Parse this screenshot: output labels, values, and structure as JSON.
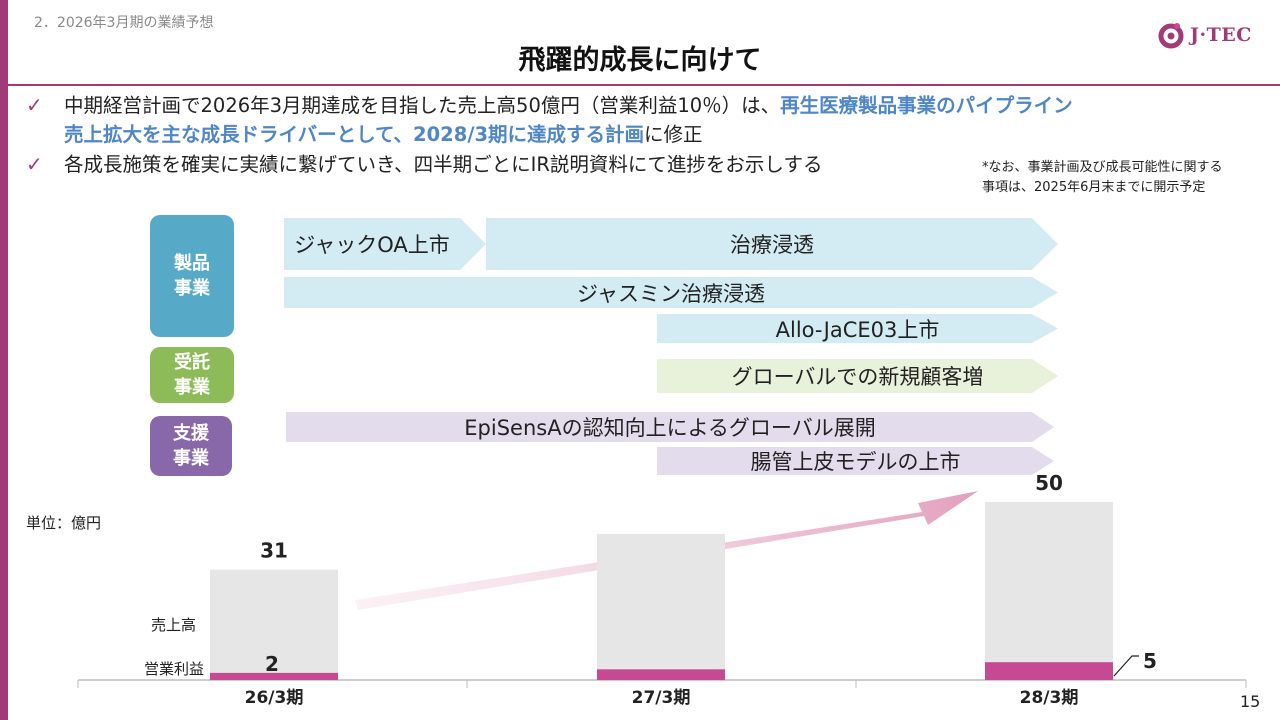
{
  "header": {
    "section": "2．2026年3月期の業績予想",
    "title": "飛躍的成長に向けて",
    "logo_text": "J·TEC"
  },
  "bullets": {
    "b1_pre": "中期経営計画で2026年3月期達成を目指した売上高50億円（営業利益10％）は、",
    "b1_hl1": "再生医療製品事業のパイプライン",
    "b1_hl2": "売上拡大を主な成長ドライバーとして、2028/3期に達成する計画",
    "b1_post": "に修正",
    "b2": "各成長施策を確実に実績に繋げていき、四半期ごとにIR説明資料にて進捗をお示しする"
  },
  "note": {
    "line1": "*なお、事業計画及び成長可能性に関する",
    "line2": "事項は、2025年6月末までに開示予定"
  },
  "segments": {
    "product": {
      "label_l1": "製品",
      "label_l2": "事業",
      "color": "#56a9c7"
    },
    "contract": {
      "label_l1": "受託",
      "label_l2": "事業",
      "color": "#8dbb58"
    },
    "support": {
      "label_l1": "支援",
      "label_l2": "事業",
      "color": "#8868a8"
    }
  },
  "initiatives": {
    "jack_oa": "ジャックOA上市",
    "treat": "治療浸透",
    "jasmine": "ジャスミン治療浸透",
    "allo": "Allo-JaCE03上市",
    "global": "グローバルでの新規顧客増",
    "episens": "EpiSensAの認知向上によるグローバル展開",
    "intestinal": "腸管上皮モデルの上市"
  },
  "chart_data": {
    "type": "bar",
    "unit_label": "単位：億円",
    "categories": [
      "26/3期",
      "27/3期",
      "28/3期"
    ],
    "series": [
      {
        "name": "売上高",
        "values": [
          31,
          41,
          50
        ],
        "color": "#e6e6e6"
      },
      {
        "name": "営業利益",
        "values": [
          2,
          3,
          5
        ],
        "color": "#c54a93"
      }
    ],
    "data_labels": {
      "revenue": [
        "31",
        "",
        "50"
      ],
      "profit": [
        "2",
        "",
        "5"
      ]
    },
    "series_labels": {
      "revenue": "売上高",
      "profit": "営業利益"
    },
    "ylim": [
      0,
      50
    ]
  },
  "page_number": "15"
}
